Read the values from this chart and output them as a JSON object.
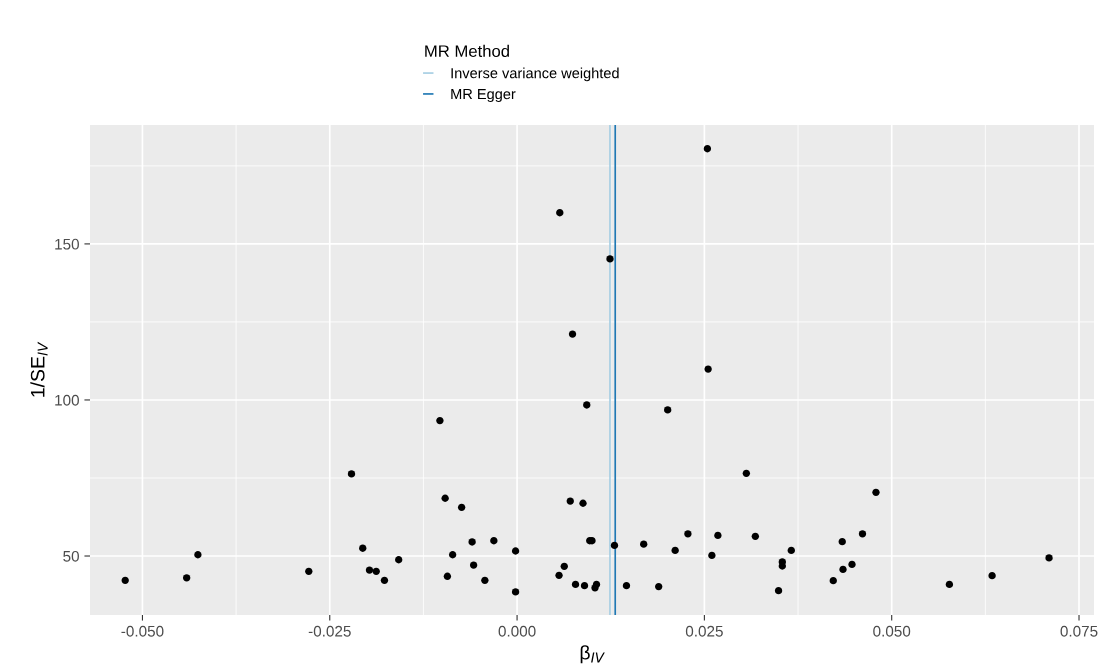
{
  "chart_data": {
    "type": "scatter",
    "xlabel": "β$_{IV}$",
    "ylabel": "1/SE$_{IV}$",
    "legend_title": "MR Method",
    "x": [
      -0.0523,
      -0.0441,
      -0.0426,
      -0.0278,
      -0.0221,
      -0.0206,
      -0.0197,
      -0.0188,
      -0.0177,
      -0.0158,
      -0.0103,
      -0.0096,
      -0.0093,
      -0.0086,
      -0.0074,
      -0.006,
      -0.0058,
      -0.0043,
      -0.0031,
      -0.0002,
      -0.0002,
      0.0056,
      0.0063,
      0.0071,
      0.0088,
      0.0078,
      0.009,
      0.0097,
      0.01,
      0.0104,
      0.0106,
      0.013,
      0.0146,
      0.0169,
      0.0189,
      0.0211,
      0.0228,
      0.026,
      0.0268,
      0.0306,
      0.0318,
      0.0349,
      0.0354,
      0.0354,
      0.0366,
      0.0422,
      0.0434,
      0.0435,
      0.0447,
      0.0461,
      0.0479,
      0.0577,
      0.0634,
      0.071,
      0.0254,
      0.0057,
      0.0124,
      0.0074,
      0.0255,
      0.0093,
      0.0201
    ],
    "series": [
      {
        "color": "#000000",
        "values": [
          42.2,
          43.0,
          50.4,
          45.1,
          76.3,
          52.5,
          45.5,
          45.1,
          42.2,
          48.8,
          93.4,
          68.5,
          43.5,
          50.4,
          65.6,
          54.5,
          47.1,
          42.2,
          54.9,
          51.6,
          38.5,
          43.8,
          46.7,
          67.6,
          66.9,
          40.9,
          40.5,
          54.9,
          54.9,
          39.8,
          40.9,
          53.4,
          40.5,
          53.8,
          40.2,
          51.8,
          57.1,
          50.2,
          56.6,
          76.5,
          56.3,
          38.9,
          48.1,
          46.8,
          51.8,
          42.1,
          54.6,
          45.7,
          47.3,
          57.1,
          70.4,
          40.9,
          43.7,
          49.4,
          180.5,
          160.0,
          145.2,
          121.1,
          109.9,
          98.4,
          96.8
        ]
      }
    ],
    "xlim": [
      -0.057,
      0.077
    ],
    "xticks": [
      {
        "value": -0.05,
        "label": "-0.050"
      },
      {
        "value": -0.025,
        "label": "-0.025"
      },
      {
        "value": 0,
        "label": "0.000"
      },
      {
        "value": 0.025,
        "label": "0.025"
      },
      {
        "value": 0.05,
        "label": "0.050"
      },
      {
        "value": 0.075,
        "label": "0.075"
      }
    ],
    "ylim": [
      31.1,
      188.1
    ],
    "yticks": [
      50,
      100,
      150
    ],
    "ref_lines": [
      {
        "axis": "x",
        "value": 0.0124,
        "label": "Inverse variance weighted",
        "color": "#a6cee3"
      },
      {
        "axis": "x",
        "value": 0.0131,
        "label": "MR Egger",
        "color": "#1f78b4"
      }
    ],
    "grid": true,
    "legend": "top",
    "marker": "circle"
  }
}
